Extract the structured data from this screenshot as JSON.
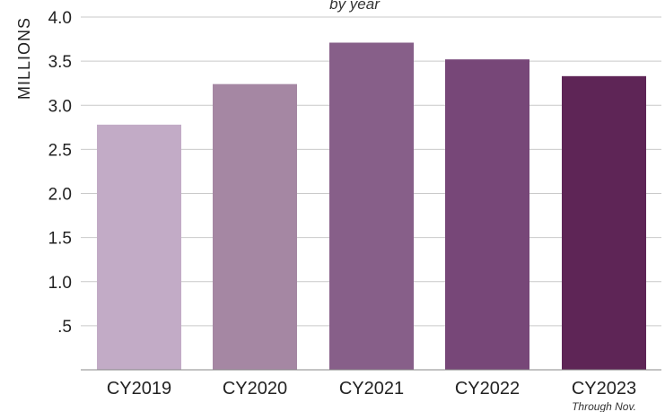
{
  "chart_data": {
    "type": "bar",
    "subtitle": "by year",
    "ylabel": "MILLIONS",
    "categories": [
      "CY2019",
      "CY2020",
      "CY2021",
      "CY2022",
      "CY2023"
    ],
    "category_notes": [
      "",
      "",
      "",
      "",
      "Through Nov."
    ],
    "values": [
      2.78,
      3.24,
      3.71,
      3.52,
      3.33
    ],
    "colors": [
      "#c2abc6",
      "#a587a3",
      "#875f89",
      "#774778",
      "#5e2556"
    ],
    "ylim": [
      0,
      4.0
    ],
    "yticks": [
      0.5,
      1.0,
      1.5,
      2.0,
      2.5,
      3.0,
      3.5,
      4.0
    ],
    "ytick_labels": [
      ".5",
      "1.0",
      "1.5",
      "2.0",
      "2.5",
      "3.0",
      "3.5",
      "4.0"
    ],
    "grid": true,
    "legend": "none"
  }
}
